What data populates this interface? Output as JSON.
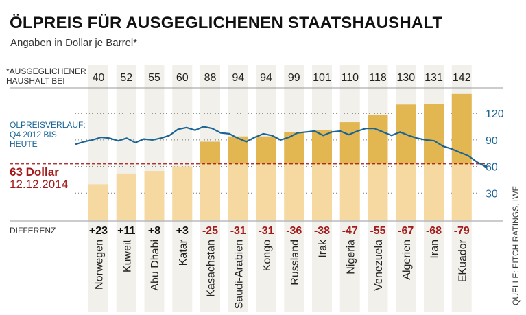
{
  "title": "ÖLPREIS FÜR AUSGEGLICHENEN STAATSHAUSHALT",
  "subtitle": "Angaben in Dollar je Barrel*",
  "source": "QUELLE: FITCH RATINGS, IWF",
  "chart_data": {
    "type": "bar",
    "title": "ÖLPREIS FÜR AUSGEGLICHENEN STAATSHAUSHALT",
    "subtitle": "Angaben in Dollar je Barrel*",
    "row_label_top": [
      "*AUSGEGLICHENER",
      "HAUSHALT BEI"
    ],
    "row_label_diff": "DIFFERENZ",
    "categories": [
      "Norwegen",
      "Kuweit",
      "Abu Dhabi",
      "Katar",
      "Kasachstan",
      "Saudi-Arabien",
      "Kongo",
      "Russland",
      "Irak",
      "Nigeria",
      "Venezuela",
      "Algerien",
      "Iran",
      "EKuador"
    ],
    "values": [
      40,
      52,
      55,
      60,
      88,
      94,
      94,
      99,
      101,
      110,
      118,
      130,
      131,
      142
    ],
    "differences": [
      "+23",
      "+11",
      "+8",
      "+3",
      "-25",
      "-31",
      "-31",
      "-36",
      "-38",
      "-47",
      "-55",
      "-67",
      "-68",
      "-79"
    ],
    "yticks": [
      30,
      60,
      90,
      120
    ],
    "ylim": [
      0,
      150
    ],
    "grid": true,
    "current_price": {
      "value": 63,
      "label": "63 Dollar",
      "date": "12.12.2014"
    },
    "line_series": {
      "label": [
        "ÖLPREISVERLAUF:",
        "Q4 2012 BIS",
        "HEUTE"
      ],
      "values": [
        85,
        88,
        90,
        93,
        92,
        89,
        92,
        87,
        91,
        90,
        92,
        95,
        102,
        104,
        101,
        105,
        103,
        98,
        97,
        92,
        88,
        93,
        97,
        95,
        90,
        93,
        98,
        99,
        100,
        95,
        99,
        100,
        96,
        100,
        103,
        103,
        99,
        95,
        99,
        95,
        92,
        90,
        89,
        83,
        80,
        76,
        72,
        65,
        60
      ]
    },
    "colors": {
      "bar_above": "#e2b650",
      "bar_below": "#f5d9a0",
      "column_bg": "#f2f0eb",
      "line": "#1a6496",
      "price": "#a31a1a",
      "positive": "#111111",
      "negative": "#a31a1a"
    }
  }
}
